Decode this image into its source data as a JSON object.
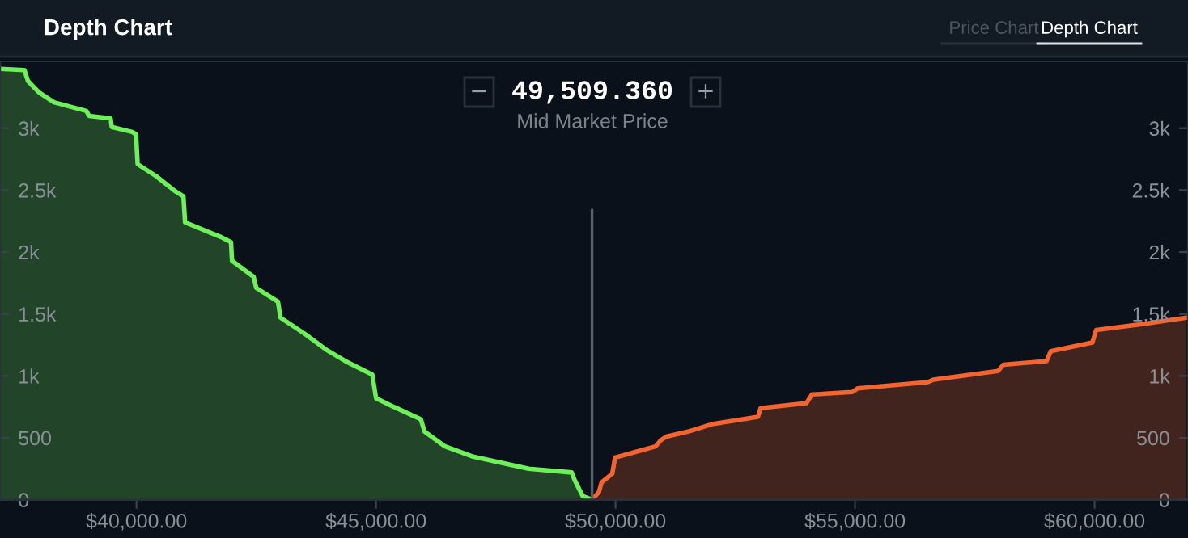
{
  "chart_data": {
    "type": "area",
    "title": "Depth Chart",
    "annotations": [
      "49,509.360",
      "Mid Market Price",
      "−",
      "+",
      "Price Chart",
      "Depth Chart"
    ],
    "series": [
      {
        "color": "#6ef05a",
        "x": [
          37150,
          37659,
          37736,
          37963,
          38277,
          38953,
          39010,
          39459,
          39483,
          39912,
          39990,
          40023,
          40419,
          40810,
          40979,
          41013,
          41770,
          41972,
          41993,
          42445,
          42499,
          42952,
          43006,
          43513,
          43966,
          44357,
          44922,
          45000,
          45371,
          45935,
          46013,
          46442,
          47006,
          48188,
          49086,
          49144,
          49313,
          49505
        ],
        "values": [
          3480,
          3470,
          3380,
          3290,
          3210,
          3140,
          3100,
          3080,
          3010,
          2970,
          2950,
          2710,
          2610,
          2490,
          2450,
          2240,
          2120,
          2080,
          1930,
          1800,
          1710,
          1600,
          1470,
          1340,
          1210,
          1120,
          1010,
          820,
          750,
          650,
          550,
          430,
          350,
          250,
          220,
          160,
          30,
          0
        ]
      },
      {
        "color": "#f26430",
        "x": [
          49505,
          49651,
          49708,
          49931,
          49989,
          50553,
          50833,
          50944,
          51059,
          51509,
          52015,
          52972,
          53029,
          53985,
          54100,
          54944,
          55055,
          56519,
          56634,
          57985,
          58096,
          58998,
          59086,
          59954,
          60032,
          61025,
          61903
        ],
        "values": [
          0,
          60,
          140,
          210,
          340,
          400,
          430,
          480,
          510,
          550,
          610,
          670,
          740,
          780,
          850,
          870,
          900,
          950,
          970,
          1040,
          1090,
          1120,
          1200,
          1270,
          1370,
          1420,
          1470
        ]
      }
    ],
    "ref_lines": [
      {
        "axis": "x",
        "value": 49509.36,
        "label": null,
        "color": "#5a6068"
      }
    ],
    "xlim": [
      37150,
      61950
    ],
    "xticks": [
      {
        "value": 40000,
        "label": "$40,000.00"
      },
      {
        "value": 45000,
        "label": "$45,000.00"
      },
      {
        "value": 50000,
        "label": "$50,000.00"
      },
      {
        "value": 55000,
        "label": "$55,000.00"
      },
      {
        "value": 60000,
        "label": "$60,000.00"
      }
    ],
    "ylim": [
      0,
      3540
    ],
    "yticks": [
      0,
      500,
      {
        "value": 1000,
        "label": "1k"
      },
      {
        "value": 1500,
        "label": "1.5k"
      },
      {
        "value": 2000,
        "label": "2k"
      },
      {
        "value": 2500,
        "label": "2.5k"
      },
      {
        "value": 3000,
        "label": "3k"
      }
    ],
    "y2lim": [
      0,
      3540
    ],
    "y2ticks": [
      0,
      500,
      {
        "value": 1000,
        "label": "1k"
      },
      {
        "value": 1500,
        "label": "1.5k"
      },
      {
        "value": 2000,
        "label": "2k"
      },
      {
        "value": 2500,
        "label": "2.5k"
      },
      {
        "value": 3000,
        "label": "3k"
      }
    ],
    "grid": false
  }
}
